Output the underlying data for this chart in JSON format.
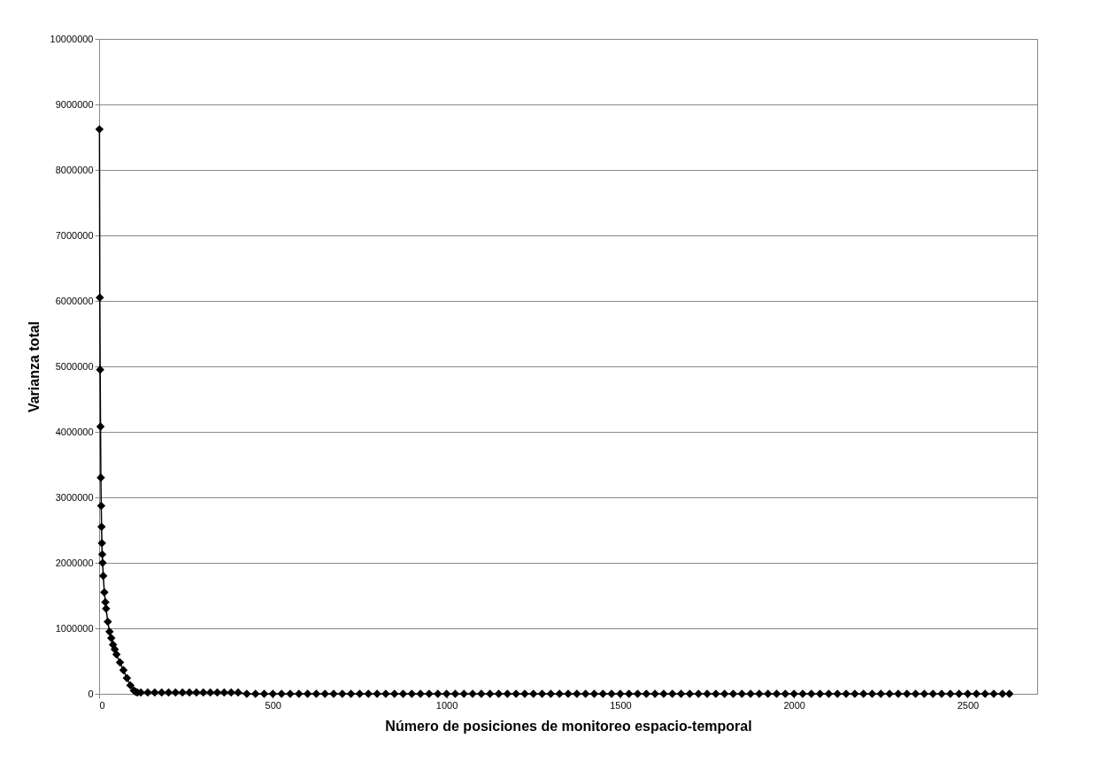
{
  "chart_data": {
    "type": "line",
    "xlabel": "Número de posiciones de monitoreo espacio-temporal",
    "ylabel": "Varianza total",
    "xlim": [
      0,
      2700
    ],
    "xticks": [
      0,
      500,
      1000,
      1500,
      2000,
      2500
    ],
    "ylim": [
      0,
      10000000
    ],
    "yticks": [
      0,
      1000000,
      2000000,
      3000000,
      4000000,
      5000000,
      6000000,
      7000000,
      8000000,
      9000000,
      10000000
    ],
    "grid": "y",
    "marker": "diamond",
    "line_style": "solid",
    "series": [
      {
        "color": "#000000",
        "x": [
          1,
          2,
          3,
          4,
          5,
          6,
          7,
          8,
          9,
          10,
          12,
          15,
          18,
          20,
          25,
          30,
          35,
          40,
          45,
          50,
          60,
          70,
          80,
          90,
          100,
          105,
          110,
          120,
          140,
          160,
          180,
          200,
          220,
          240,
          260,
          280,
          300,
          320,
          340,
          360,
          380,
          400,
          425,
          450,
          475,
          500,
          525,
          550,
          575,
          600,
          625,
          650,
          675,
          700,
          725,
          750,
          775,
          800,
          825,
          850,
          875,
          900,
          925,
          950,
          975,
          1000,
          1025,
          1050,
          1075,
          1100,
          1125,
          1150,
          1175,
          1200,
          1225,
          1250,
          1275,
          1300,
          1325,
          1350,
          1375,
          1400,
          1425,
          1450,
          1475,
          1500,
          1525,
          1550,
          1575,
          1600,
          1625,
          1650,
          1675,
          1700,
          1725,
          1750,
          1775,
          1800,
          1825,
          1850,
          1875,
          1900,
          1925,
          1950,
          1975,
          2000,
          2025,
          2050,
          2075,
          2100,
          2125,
          2150,
          2175,
          2200,
          2225,
          2250,
          2275,
          2300,
          2325,
          2350,
          2375,
          2400,
          2425,
          2450,
          2475,
          2500,
          2525,
          2550,
          2575,
          2600,
          2620
        ],
        "values": [
          8620000,
          6050000,
          4950000,
          4080000,
          3300000,
          2870000,
          2550000,
          2300000,
          2130000,
          2000000,
          1800000,
          1550000,
          1400000,
          1300000,
          1100000,
          950000,
          850000,
          750000,
          680000,
          600000,
          480000,
          360000,
          240000,
          130000,
          50000,
          30000,
          20000,
          20000,
          20000,
          20000,
          20000,
          20000,
          20000,
          20000,
          20000,
          20000,
          20000,
          20000,
          20000,
          20000,
          20000,
          20000,
          0,
          0,
          0,
          0,
          0,
          0,
          0,
          0,
          0,
          0,
          0,
          0,
          0,
          0,
          0,
          0,
          0,
          0,
          0,
          0,
          0,
          0,
          0,
          0,
          0,
          0,
          0,
          0,
          0,
          0,
          0,
          0,
          0,
          0,
          0,
          0,
          0,
          0,
          0,
          0,
          0,
          0,
          0,
          0,
          0,
          0,
          0,
          0,
          0,
          0,
          0,
          0,
          0,
          0,
          0,
          0,
          0,
          0,
          0,
          0,
          0,
          0,
          0,
          0,
          0,
          0,
          0,
          0,
          0,
          0,
          0,
          0,
          0,
          0,
          0,
          0,
          0,
          0,
          0,
          0,
          0,
          0,
          0,
          0,
          0,
          0,
          0,
          0,
          0
        ]
      }
    ]
  }
}
